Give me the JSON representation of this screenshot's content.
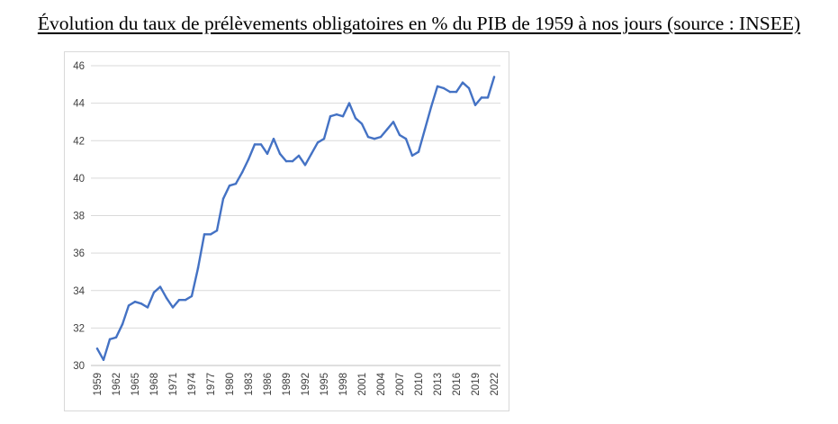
{
  "chart_data": {
    "type": "line",
    "title": "Évolution du taux de prélèvements obligatoires en % du PIB de 1959 à nos jours (source : INSEE)",
    "xlabel": "",
    "ylabel": "",
    "ylim": [
      30,
      46
    ],
    "yticks": [
      30,
      32,
      34,
      36,
      38,
      40,
      42,
      44,
      46
    ],
    "xtick_labels": [
      "1959",
      "1962",
      "1965",
      "1968",
      "1971",
      "1974",
      "1977",
      "1980",
      "1983",
      "1986",
      "1989",
      "1992",
      "1995",
      "1998",
      "2001",
      "2004",
      "2007",
      "2010",
      "2013",
      "2016",
      "2019",
      "2022"
    ],
    "grid": true,
    "series": [
      {
        "name": "Taux de prélèvements obligatoires",
        "color": "#4472c4",
        "x": [
          1959,
          1960,
          1961,
          1962,
          1963,
          1964,
          1965,
          1966,
          1967,
          1968,
          1969,
          1970,
          1971,
          1972,
          1973,
          1974,
          1975,
          1976,
          1977,
          1978,
          1979,
          1980,
          1981,
          1982,
          1983,
          1984,
          1985,
          1986,
          1987,
          1988,
          1989,
          1990,
          1991,
          1992,
          1993,
          1994,
          1995,
          1996,
          1997,
          1998,
          1999,
          2000,
          2001,
          2002,
          2003,
          2004,
          2005,
          2006,
          2007,
          2008,
          2009,
          2010,
          2011,
          2012,
          2013,
          2014,
          2015,
          2016,
          2017,
          2018,
          2019,
          2020,
          2021,
          2022
        ],
        "values": [
          30.9,
          30.3,
          31.4,
          31.5,
          32.2,
          33.2,
          33.4,
          33.3,
          33.1,
          33.9,
          34.2,
          33.6,
          33.1,
          33.5,
          33.5,
          33.7,
          35.2,
          37.0,
          37.0,
          37.2,
          38.9,
          39.6,
          39.7,
          40.3,
          41.0,
          41.8,
          41.8,
          41.3,
          42.1,
          41.3,
          40.9,
          40.9,
          41.2,
          40.7,
          41.3,
          41.9,
          42.1,
          43.3,
          43.4,
          43.3,
          44.0,
          43.2,
          42.9,
          42.2,
          42.1,
          42.2,
          42.6,
          43.0,
          42.3,
          42.1,
          41.2,
          41.4,
          42.6,
          43.8,
          44.9,
          44.8,
          44.6,
          44.6,
          45.1,
          44.8,
          43.9,
          44.3,
          44.3,
          45.4
        ]
      }
    ]
  }
}
